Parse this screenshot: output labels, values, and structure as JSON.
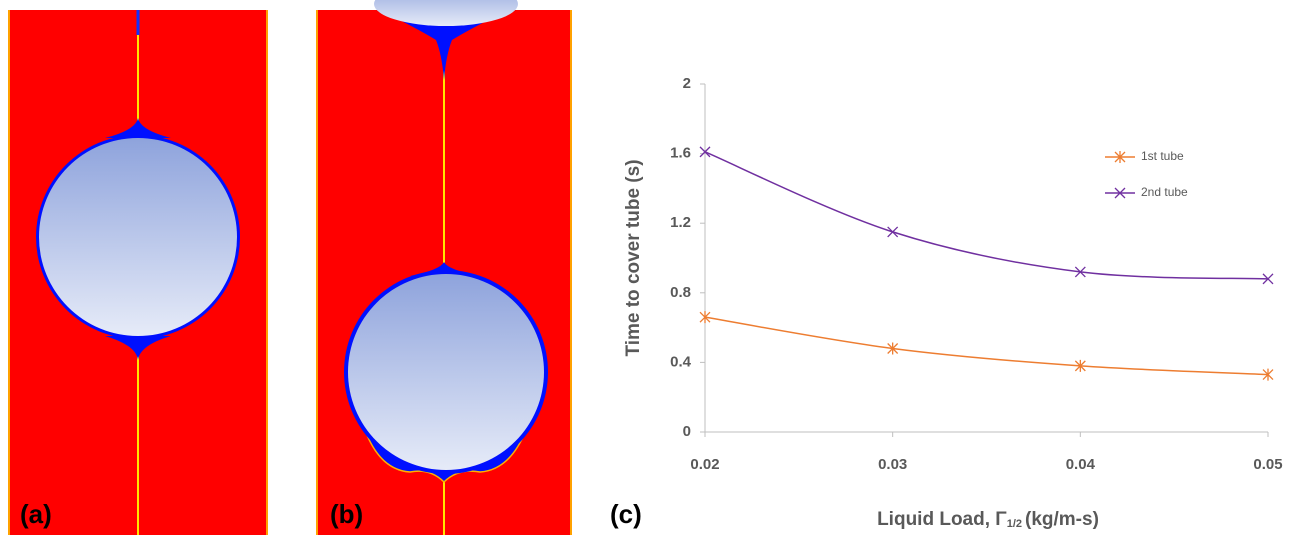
{
  "panel_labels": [
    "(a)",
    "(b)",
    "(c)"
  ],
  "chart_data": {
    "type": "line",
    "xlabel": "Liquid Load, Γ",
    "xlabel_sub": "1/2",
    "xlabel_unit": "(kg/m-s)",
    "ylabel": "Time to cover tube (s)",
    "x": [
      0.02,
      0.03,
      0.04,
      0.05
    ],
    "series": [
      {
        "name": "1st tube",
        "color": "#ED7D31",
        "marker": "asterisk",
        "values": [
          0.66,
          0.48,
          0.38,
          0.33
        ]
      },
      {
        "name": "2nd tube",
        "color": "#7030A0",
        "marker": "x",
        "values": [
          1.61,
          1.15,
          0.92,
          0.88
        ]
      }
    ],
    "xlim": [
      0.02,
      0.05
    ],
    "xticks": [
      0.02,
      0.03,
      0.04,
      0.05
    ],
    "ylim": [
      0,
      2
    ],
    "yticks": [
      0,
      0.4,
      0.8,
      1.2,
      1.6,
      2
    ],
    "legend": "upper right",
    "smooth": true
  }
}
